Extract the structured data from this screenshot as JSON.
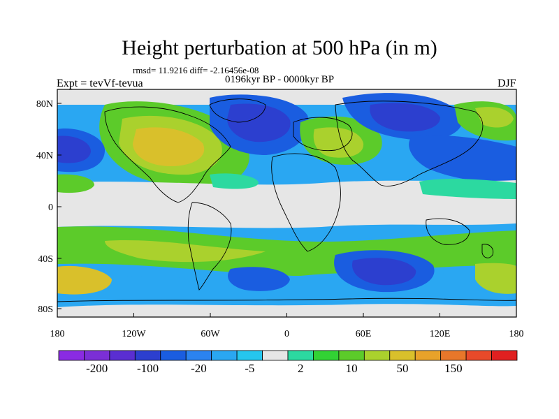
{
  "title": "Height perturbation at 500 hPa (in m)",
  "stats": "rmsd= 11.9216 diff= -2.16456e-08",
  "experiment": "Expt = tevVf-tevua",
  "period": "0196kyr BP - 0000kyr BP",
  "season": "DJF",
  "axes": {
    "lat_ticks": [
      "80N",
      "40N",
      "0",
      "40S",
      "80S"
    ],
    "lon_ticks": [
      "180",
      "120W",
      "60W",
      "0",
      "60E",
      "120E",
      "180"
    ]
  },
  "colorbar": {
    "colors": [
      "#8a2be2",
      "#7b2fd6",
      "#5a2ed1",
      "#2c3fcf",
      "#1a5de0",
      "#2b83f0",
      "#2aa7f2",
      "#25c6ee",
      "#e6e6e6",
      "#2cd9a0",
      "#32d234",
      "#5ccb2a",
      "#aad12d",
      "#d9c02b",
      "#e8a22a",
      "#e8772a",
      "#e84a2a",
      "#e02020"
    ],
    "labels": [
      "-200",
      "-100",
      "-20",
      "-5",
      "2",
      "10",
      "50",
      "150"
    ]
  }
}
